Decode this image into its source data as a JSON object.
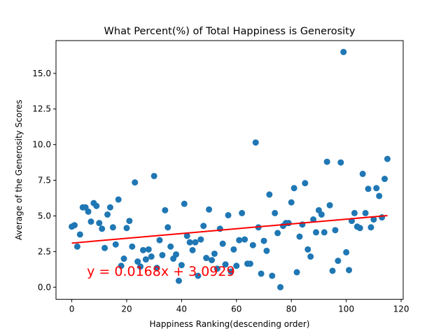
{
  "chart_data": {
    "type": "scatter",
    "title": "What Percent(%) of Total Happiness is Generosity",
    "xlabel": "Happiness Ranking(descending order)",
    "ylabel": "Average of the Generosity Scores",
    "xlim": [
      -5.75,
      120.75
    ],
    "ylim": [
      -0.85,
      17.3
    ],
    "xticks": [
      0,
      20,
      40,
      60,
      80,
      100,
      120
    ],
    "yticks": [
      0.0,
      2.5,
      5.0,
      7.5,
      10.0,
      12.5,
      15.0
    ],
    "ytick_labels": [
      "0.0",
      "2.5",
      "5.0",
      "7.5",
      "10.0",
      "12.5",
      "15.0"
    ],
    "grid": false,
    "legend": "none",
    "point_color": "#1f77b4",
    "line_color": "#ff0000",
    "fit": {
      "slope": 0.0168,
      "intercept": 3.0929,
      "x_range": [
        0,
        115
      ]
    },
    "annotation": {
      "text": "y = 0.0168x + 3.0929",
      "color": "#ff0000",
      "x": 5.5,
      "y": 0.8
    },
    "series": [
      {
        "x": [
          0,
          1,
          2,
          3,
          4,
          5,
          6,
          7,
          8,
          9,
          10,
          11,
          12,
          13,
          14,
          15,
          16,
          17,
          18,
          19,
          20,
          21,
          22,
          23,
          24,
          25,
          26,
          27,
          28,
          29,
          30,
          31,
          32,
          33,
          34,
          35,
          36,
          37,
          38,
          39,
          40,
          41,
          42,
          43,
          44,
          45,
          46,
          47,
          48,
          49,
          50,
          51,
          52,
          53,
          54,
          55,
          56,
          57,
          58,
          59,
          60,
          61,
          62,
          63,
          64,
          65,
          66,
          67,
          68,
          69,
          70,
          71,
          72,
          73,
          74,
          75,
          76,
          77,
          78,
          79,
          80,
          81,
          82,
          83,
          84,
          85,
          86,
          87,
          88,
          89,
          90,
          91,
          92,
          93,
          94,
          95,
          96,
          97,
          98,
          99,
          100,
          101,
          102,
          103,
          104,
          105,
          106,
          107,
          108,
          109,
          110,
          111,
          112,
          113,
          114,
          115
        ],
        "y": [
          4.25,
          4.35,
          2.85,
          3.7,
          5.6,
          5.6,
          5.3,
          4.6,
          5.9,
          5.7,
          4.5,
          4.1,
          2.75,
          5.1,
          5.6,
          4.2,
          3.0,
          6.15,
          1.5,
          2.0,
          4.15,
          4.65,
          2.85,
          7.35,
          1.8,
          1.45,
          2.6,
          1.95,
          2.65,
          2.15,
          7.8,
          1.35,
          3.3,
          2.25,
          5.4,
          4.2,
          2.85,
          2.0,
          2.3,
          0.45,
          1.55,
          5.85,
          3.6,
          3.15,
          2.6,
          3.15,
          0.8,
          3.35,
          4.3,
          2.05,
          5.45,
          1.9,
          2.35,
          1.3,
          4.1,
          3.05,
          1.6,
          5.05,
          1.1,
          2.65,
          1.5,
          3.3,
          5.2,
          3.35,
          1.65,
          1.65,
          2.95,
          10.15,
          4.2,
          0.95,
          3.25,
          2.55,
          6.5,
          0.8,
          5.2,
          3.8,
          0.0,
          4.3,
          4.5,
          4.5,
          5.95,
          6.95,
          1.05,
          3.55,
          4.4,
          7.3,
          2.65,
          2.15,
          4.75,
          3.85,
          5.4,
          5.1,
          3.85,
          8.8,
          5.75,
          1.15,
          4.0,
          1.85,
          8.75,
          16.5,
          2.45,
          1.2,
          4.65,
          5.2,
          4.25,
          4.15,
          7.95,
          5.2,
          6.9,
          4.2,
          4.75,
          6.95,
          6.4,
          4.9,
          7.6,
          9.0
        ]
      }
    ]
  }
}
